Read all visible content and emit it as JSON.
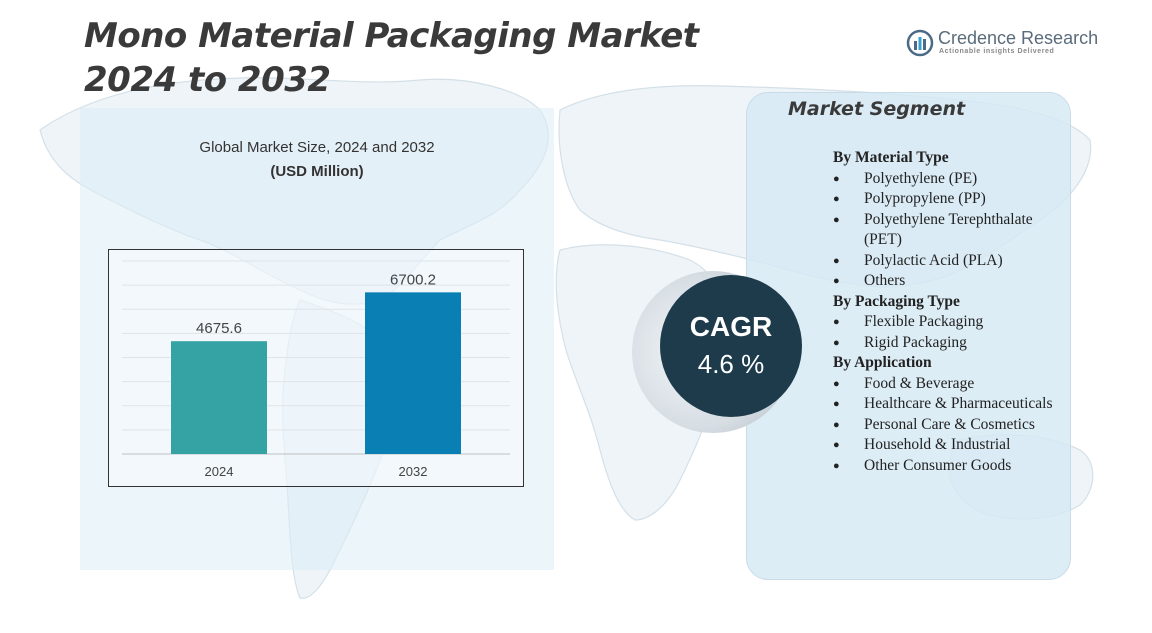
{
  "title": {
    "line1": "Mono Material Packaging Market",
    "line2": "2024 to 2032"
  },
  "logo": {
    "name": "Credence Research",
    "tagline": "Actionable insights Delivered"
  },
  "chart_caption": {
    "line1": "Global Market Size, 2024 and 2032",
    "line2": "(USD Million)"
  },
  "chart_data": {
    "type": "bar",
    "categories": [
      "2024",
      "2032"
    ],
    "values": [
      4675.6,
      6700.2
    ],
    "data_labels": [
      "4675.6",
      "6700.2"
    ],
    "title": "Global Market Size, 2024 and 2032",
    "ylabel": "(USD Million)",
    "bar_colors": [
      "#35a3a3",
      "#0a7fb4"
    ],
    "gridlines": true,
    "ylim": [
      0,
      8000
    ]
  },
  "cagr": {
    "label": "CAGR",
    "value": "4.6 %"
  },
  "segment": {
    "title": "Market Segment",
    "groups": [
      {
        "heading": "By Material Type",
        "items": [
          "Polyethylene (PE)",
          "Polypropylene (PP)",
          "Polyethylene Terephthalate (PET)",
          "Polylactic Acid (PLA)",
          "Others"
        ]
      },
      {
        "heading": "By Packaging Type",
        "items": [
          "Flexible Packaging",
          "Rigid Packaging"
        ]
      },
      {
        "heading": "By Application",
        "items": [
          "Food & Beverage",
          "Healthcare & Pharmaceuticals",
          "Personal Care & Cosmetics",
          "Household & Industrial",
          "Other Consumer Goods"
        ]
      }
    ]
  },
  "colors": {
    "title": "#3a3a3a",
    "cagr_bg": "#1e3b4c",
    "panel_bg": "#dcecf6"
  }
}
